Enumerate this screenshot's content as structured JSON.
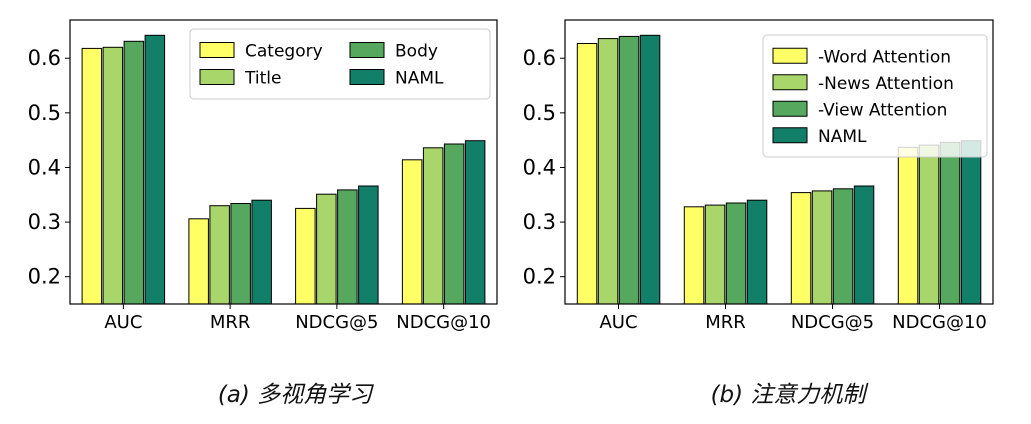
{
  "colors": {
    "Category": "#ffff66",
    "Title": "#a9d66b",
    "Body": "#55a85d",
    "NAML": "#127f68",
    "-Word Attention": "#ffff66",
    "-News Attention": "#a9d66b",
    "-View Attention": "#55a85d"
  },
  "captions": {
    "a": "(a) 多视角学习",
    "b": "(b) 注意力机制"
  },
  "chart_data": [
    {
      "id": "a",
      "type": "bar",
      "categories": [
        "AUC",
        "MRR",
        "NDCG@5",
        "NDCG@10"
      ],
      "series": [
        {
          "name": "Category",
          "values": [
            0.618,
            0.306,
            0.325,
            0.414
          ]
        },
        {
          "name": "Title",
          "values": [
            0.62,
            0.33,
            0.351,
            0.436
          ]
        },
        {
          "name": "Body",
          "values": [
            0.631,
            0.334,
            0.359,
            0.443
          ]
        },
        {
          "name": "NAML",
          "values": [
            0.642,
            0.34,
            0.366,
            0.449
          ]
        }
      ],
      "yticks": [
        "0.2",
        "0.3",
        "0.4",
        "0.5",
        "0.6"
      ],
      "ylim": [
        0.15,
        0.67
      ],
      "legend_position": "top-right",
      "legend_columns": 2
    },
    {
      "id": "b",
      "type": "bar",
      "categories": [
        "AUC",
        "MRR",
        "NDCG@5",
        "NDCG@10"
      ],
      "series": [
        {
          "name": "-Word Attention",
          "values": [
            0.627,
            0.328,
            0.354,
            0.437
          ]
        },
        {
          "name": "-News Attention",
          "values": [
            0.636,
            0.331,
            0.357,
            0.441
          ]
        },
        {
          "name": "-View Attention",
          "values": [
            0.64,
            0.335,
            0.361,
            0.446
          ]
        },
        {
          "name": "NAML",
          "values": [
            0.642,
            0.34,
            0.366,
            0.449
          ]
        }
      ],
      "yticks": [
        "0.2",
        "0.3",
        "0.4",
        "0.5",
        "0.6"
      ],
      "ylim": [
        0.15,
        0.67
      ],
      "legend_position": "top-right",
      "legend_columns": 1
    }
  ]
}
